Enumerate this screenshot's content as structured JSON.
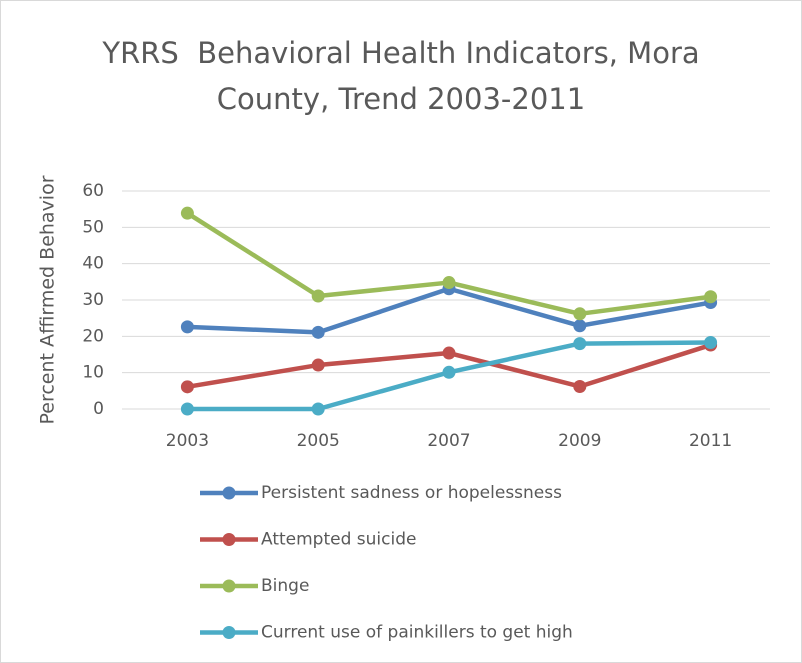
{
  "chart_data": {
    "type": "line",
    "title": "YRRS  Behavioral Health Indicators, Mora County, Trend 2003-2011",
    "y_label": "Percent Affirmed Behavior",
    "categories": [
      "2003",
      "2005",
      "2007",
      "2009",
      "2011"
    ],
    "series": [
      {
        "name": "Persistent sadness or hopelessness",
        "color": "#4f81bd",
        "values": [
          22.6,
          21.1,
          33.1,
          22.9,
          29.3
        ]
      },
      {
        "name": "Attempted suicide",
        "color": "#c0504d",
        "values": [
          6.1,
          12.1,
          15.4,
          6.2,
          17.6
        ]
      },
      {
        "name": "Binge",
        "color": "#9bbb59",
        "values": [
          53.9,
          31.1,
          34.8,
          26.2,
          30.9
        ]
      },
      {
        "name": "Current use of painkillers to get high",
        "color": "#4bacc6",
        "values": [
          0,
          0,
          10.1,
          18.0,
          18.3
        ]
      }
    ],
    "ylim": [
      0,
      60
    ],
    "yticks": [
      0,
      10,
      20,
      30,
      40,
      50,
      60
    ],
    "grid": true,
    "legend": "bottom"
  }
}
